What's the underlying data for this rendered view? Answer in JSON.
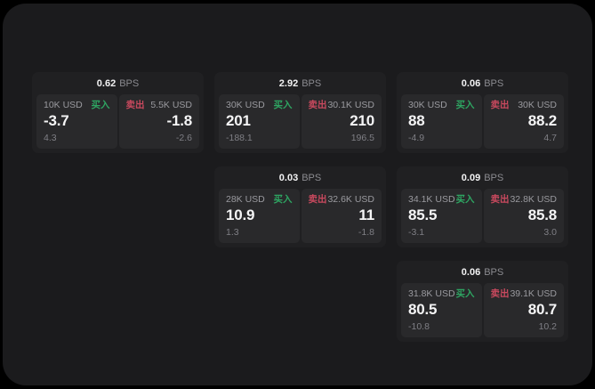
{
  "app": {
    "background_color": "#000000",
    "panel_color": "#1b1b1d",
    "card_color": "#202022",
    "tile_color": "#29292b"
  },
  "labels": {
    "bps_unit": "BPS",
    "buy": "买入",
    "sell": "卖出"
  },
  "colors": {
    "buy_accent": "#2ea562",
    "sell_accent": "#c9495e",
    "value_text": "#f5f5f6",
    "muted_text": "#9a9a9f"
  },
  "cards": [
    {
      "col": 0,
      "row": 0,
      "bps": "0.62",
      "buy_side": {
        "size": "10K USD",
        "value": "-3.7",
        "change": "4.3"
      },
      "sell_side": {
        "size": "5.5K USD",
        "value": "-1.8",
        "change": "-2.6"
      }
    },
    {
      "col": 1,
      "row": 0,
      "bps": "2.92",
      "buy_side": {
        "size": "30K USD",
        "value": "201",
        "change": "-188.1"
      },
      "sell_side": {
        "size": "30.1K USD",
        "value": "210",
        "change": "196.5"
      }
    },
    {
      "col": 2,
      "row": 0,
      "bps": "0.06",
      "buy_side": {
        "size": "30K USD",
        "value": "88",
        "change": "-4.9"
      },
      "sell_side": {
        "size": "30K USD",
        "value": "88.2",
        "change": "4.7"
      }
    },
    {
      "col": 1,
      "row": 1,
      "bps": "0.03",
      "buy_side": {
        "size": "28K USD",
        "value": "10.9",
        "change": "1.3"
      },
      "sell_side": {
        "size": "32.6K USD",
        "value": "11",
        "change": "-1.8"
      }
    },
    {
      "col": 2,
      "row": 1,
      "bps": "0.09",
      "buy_side": {
        "size": "34.1K USD",
        "value": "85.5",
        "change": "-3.1"
      },
      "sell_side": {
        "size": "32.8K USD",
        "value": "85.8",
        "change": "3.0"
      }
    },
    {
      "col": 2,
      "row": 2,
      "bps": "0.06",
      "buy_side": {
        "size": "31.8K USD",
        "value": "80.5",
        "change": "-10.8"
      },
      "sell_side": {
        "size": "39.1K USD",
        "value": "80.7",
        "change": "10.2"
      }
    }
  ]
}
